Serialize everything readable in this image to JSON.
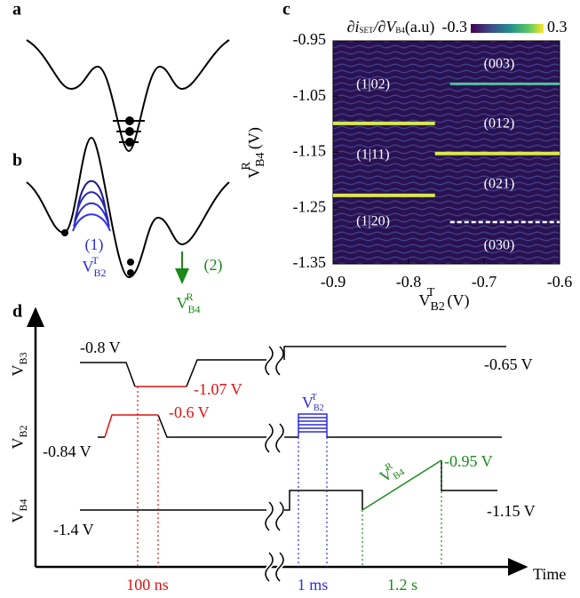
{
  "panels": {
    "a": "a",
    "b": "b",
    "c": "c",
    "d": "d"
  },
  "panel_b": {
    "step1": "(1)",
    "step2": "(2)",
    "v1": {
      "base": "V",
      "sub": "B2",
      "sup": "T"
    },
    "v2": {
      "base": "V",
      "sub": "B4",
      "sup": "R"
    }
  },
  "chart_data": {
    "type": "heatmap",
    "xlabel": {
      "base": "V",
      "sub": "B2",
      "sup": "T",
      "unit": "(V)"
    },
    "ylabel": {
      "base": "V",
      "sub": "B4",
      "sup": "R",
      "unit": "(V)"
    },
    "xlim": [
      -0.9,
      -0.6
    ],
    "xticks": [
      -0.9,
      -0.8,
      -0.7,
      -0.6
    ],
    "ylim": [
      -1.35,
      -0.95
    ],
    "yticks": [
      -0.95,
      -1.05,
      -1.15,
      -1.25,
      -1.35
    ],
    "colorbar": {
      "label": {
        "a": "∂i",
        "b": "SET",
        "c": "/∂V",
        "d": "B4",
        "e": "(a.u)"
      },
      "lim": [
        -0.3,
        0.3
      ]
    },
    "regions": [
      "(1|02)",
      "(003)",
      "(012)",
      "(1|11)",
      "(021)",
      "(1|20)",
      "(030)"
    ],
    "transitions": [
      {
        "x": [
          -0.9,
          -0.765
        ],
        "y": -1.098
      },
      {
        "x": [
          -0.9,
          -0.765
        ],
        "y": -1.227
      },
      {
        "x": [
          -0.765,
          -0.6
        ],
        "y": -1.152
      },
      {
        "x": [
          -0.745,
          -0.6
        ],
        "y": -1.027
      }
    ],
    "dashed": {
      "x": [
        -0.745,
        -0.6
      ],
      "y": -1.275
    }
  },
  "panel_d": {
    "axes": {
      "b3": {
        "base": "V",
        "sub": "B3"
      },
      "b2": {
        "base": "V",
        "sub": "B2"
      },
      "b4": {
        "base": "V",
        "sub": "B4"
      },
      "time": "Time"
    },
    "levels": {
      "b3_start": "-0.8 V",
      "b3_low": "-1.07 V",
      "b3_end": "-0.65 V",
      "b2_high": "-0.6 V",
      "b2_start": "-0.84 V",
      "b4_start": "-1.4 V",
      "b4_peak": "-0.95 V",
      "b4_end": "-1.15 V"
    },
    "pulse_b2": {
      "base": "V",
      "sub": "B2",
      "sup": "T"
    },
    "ramp_b4": {
      "base": "V",
      "sub": "B4",
      "sup": "R"
    },
    "durations": {
      "d1": "100 ns",
      "d2": "1 ms",
      "d3": "1.2 s"
    }
  }
}
